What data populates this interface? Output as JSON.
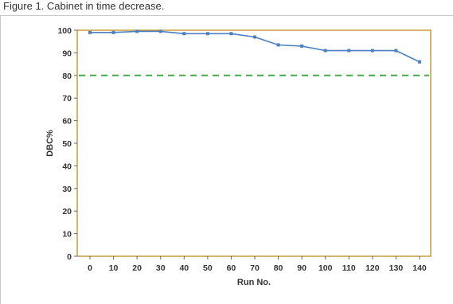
{
  "caption": "Figure 1. Cabinet in time decrease.",
  "chart_data": {
    "type": "line",
    "xlabel": "Run No.",
    "ylabel": "DBC%",
    "xlim": [
      0,
      140
    ],
    "ylim": [
      0,
      100
    ],
    "x_ticks": [
      0,
      10,
      20,
      30,
      40,
      50,
      60,
      70,
      80,
      90,
      100,
      110,
      120,
      130,
      140
    ],
    "y_ticks": [
      0,
      10,
      20,
      30,
      40,
      50,
      60,
      70,
      80,
      90,
      100
    ],
    "grid": false,
    "series": [
      {
        "color": "#4a7fc1",
        "x": [
          0,
          10,
          20,
          30,
          40,
          50,
          60,
          70,
          80,
          90,
          100,
          110,
          120,
          130,
          140
        ],
        "y": [
          99,
          99,
          99.5,
          99.5,
          98.5,
          98.5,
          98.5,
          97,
          93.5,
          93,
          91,
          91,
          91,
          91,
          86
        ]
      }
    ],
    "reference_line": {
      "y": 80,
      "color": "#4caf50",
      "style": "dashed"
    },
    "plot_border_color": "#b8860b"
  }
}
